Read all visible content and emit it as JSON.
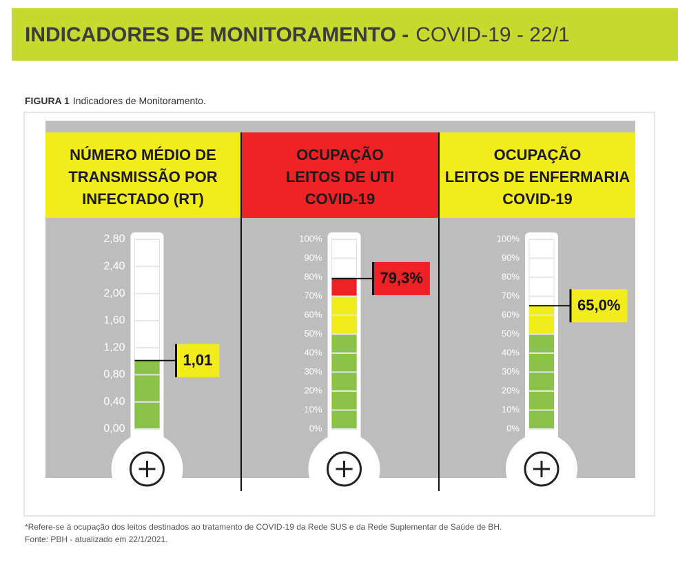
{
  "header": {
    "title_bold": "INDICADORES DE MONITORAMENTO -",
    "title_rest": "COVID-19 - 22/1"
  },
  "caption": {
    "label": "FIGURA 1",
    "text": "Indicadores de Monitoramento."
  },
  "chart_data": [
    {
      "type": "thermometer",
      "title": [
        "NÚMERO MÉDIO DE",
        "TRANSMISSÃO POR",
        "INFECTADO (RT)"
      ],
      "header_color": "#f2ec1c",
      "value": 1.01,
      "value_label": "1,01",
      "label_color": "#f2ec1c",
      "bands": [
        {
          "from": 0,
          "to": 2.8,
          "color": "#8bc34a"
        }
      ],
      "ylim": [
        0,
        2.8
      ],
      "yticks": [
        {
          "value": 0,
          "label": "0,00"
        },
        {
          "value": 0.4,
          "label": "0,40"
        },
        {
          "value": 0.8,
          "label": "0,80"
        },
        {
          "value": 1.2,
          "label": "1,20"
        },
        {
          "value": 1.6,
          "label": "1,60"
        },
        {
          "value": 2.0,
          "label": "2,00"
        },
        {
          "value": 2.4,
          "label": "2,40"
        },
        {
          "value": 2.8,
          "label": "2,80"
        }
      ]
    },
    {
      "type": "thermometer",
      "title": [
        "OCUPAÇÃO",
        "LEITOS DE UTI",
        "COVID-19"
      ],
      "header_color": "#ee2124",
      "value": 79.3,
      "value_label": "79,3%",
      "label_color": "#ee2124",
      "bands": [
        {
          "from": 0,
          "to": 50,
          "color": "#8bc34a"
        },
        {
          "from": 50,
          "to": 70,
          "color": "#f2ec1c"
        },
        {
          "from": 70,
          "to": 100,
          "color": "#ee2124"
        }
      ],
      "ylim": [
        0,
        100
      ],
      "yticks": [
        {
          "value": 0,
          "label": "0%"
        },
        {
          "value": 10,
          "label": "10%"
        },
        {
          "value": 20,
          "label": "20%"
        },
        {
          "value": 30,
          "label": "30%"
        },
        {
          "value": 40,
          "label": "40%"
        },
        {
          "value": 50,
          "label": "50%"
        },
        {
          "value": 60,
          "label": "60%"
        },
        {
          "value": 70,
          "label": "70%"
        },
        {
          "value": 80,
          "label": "80%"
        },
        {
          "value": 90,
          "label": "90%"
        },
        {
          "value": 100,
          "label": "100%"
        }
      ]
    },
    {
      "type": "thermometer",
      "title": [
        "OCUPAÇÃO",
        "LEITOS DE ENFERMARIA",
        "COVID-19"
      ],
      "header_color": "#f2ec1c",
      "value": 65.0,
      "value_label": "65,0%",
      "label_color": "#f2ec1c",
      "bands": [
        {
          "from": 0,
          "to": 50,
          "color": "#8bc34a"
        },
        {
          "from": 50,
          "to": 70,
          "color": "#f2ec1c"
        },
        {
          "from": 70,
          "to": 100,
          "color": "#ee2124"
        }
      ],
      "ylim": [
        0,
        100
      ],
      "yticks": [
        {
          "value": 0,
          "label": "0%"
        },
        {
          "value": 10,
          "label": "10%"
        },
        {
          "value": 20,
          "label": "20%"
        },
        {
          "value": 30,
          "label": "30%"
        },
        {
          "value": 40,
          "label": "40%"
        },
        {
          "value": 50,
          "label": "50%"
        },
        {
          "value": 60,
          "label": "60%"
        },
        {
          "value": 70,
          "label": "70%"
        },
        {
          "value": 80,
          "label": "80%"
        },
        {
          "value": 90,
          "label": "90%"
        },
        {
          "value": 100,
          "label": "100%"
        }
      ]
    }
  ],
  "notes": [
    "*Refere-se à ocupação dos leitos destinados ao tratamento de COVID-19 da Rede SUS e da Rede Suplementar de Saúde de BH.",
    "Fonte: PBH - atualizado em 22/1/2021."
  ]
}
